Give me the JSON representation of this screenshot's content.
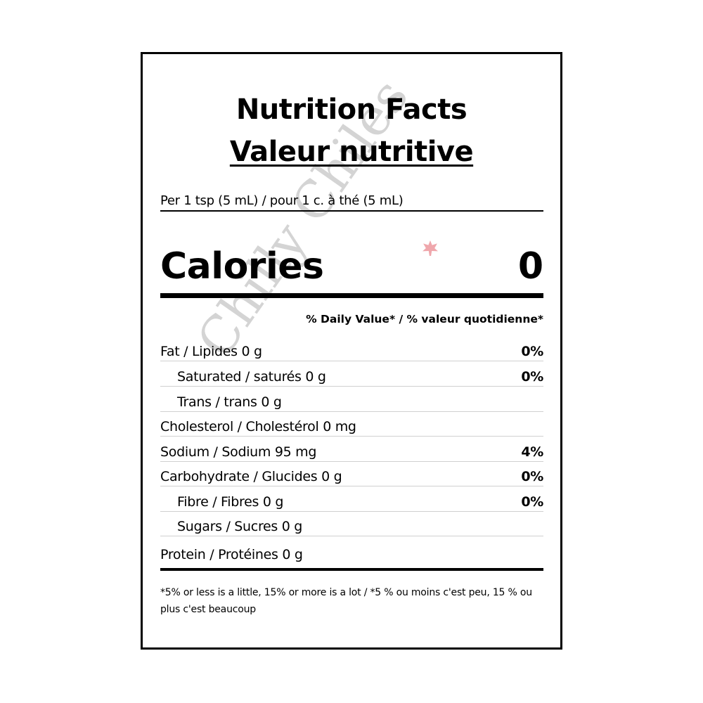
{
  "label": {
    "title_en": "Nutrition Facts",
    "title_fr": "Valeur nutritive",
    "serving": "Per 1 tsp (5 mL) / pour 1 c. à thé (5 mL)",
    "calories_label": "Calories",
    "calories_value": "0",
    "daily_value_header": "% Daily Value* / % valeur quotidienne*",
    "rows": [
      {
        "name": "Fat / Lipides 0 g",
        "dv": "0%"
      },
      {
        "name": "Saturated / saturés 0 g",
        "dv": "0%"
      },
      {
        "name": "Trans / trans 0 g",
        "dv": ""
      },
      {
        "name": "Cholesterol / Cholestérol 0 mg",
        "dv": ""
      },
      {
        "name": "Sodium / Sodium 95 mg",
        "dv": "4%"
      },
      {
        "name": "Carbohydrate / Glucides 0 g",
        "dv": "0%"
      },
      {
        "name": "Fibre / Fibres 0 g",
        "dv": "0%"
      },
      {
        "name": "Sugars / Sucres 0 g",
        "dv": ""
      },
      {
        "name": "Protein / Protéines 0 g",
        "dv": ""
      }
    ],
    "footnote": "*5% or less is a little, 15% or more is a lot / *5 % ou moins c'est peu, 15 % ou plus c'est beaucoup"
  },
  "watermark": {
    "text": "Chilly Chiles",
    "color": "#888888",
    "accent_color": "#dc3c46"
  }
}
